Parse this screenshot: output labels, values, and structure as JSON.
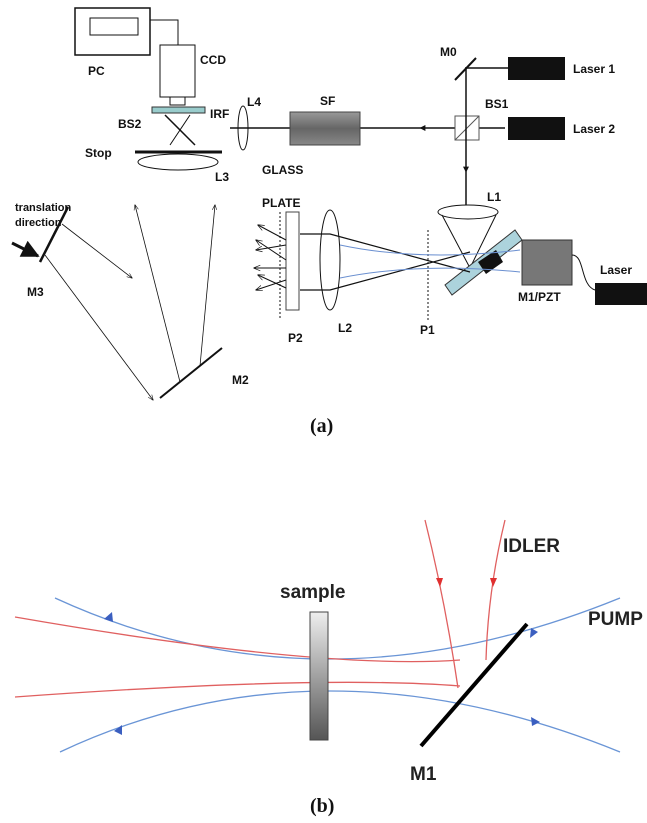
{
  "panel_a": {
    "labels": {
      "pc": "PC",
      "ccd": "CCD",
      "m0": "M0",
      "laser1": "Laser 1",
      "irf": "IRF",
      "l4": "L4",
      "sf": "SF",
      "bs1": "BS1",
      "laser2": "Laser 2",
      "bs2": "BS2",
      "stop": "Stop",
      "glass": "GLASS",
      "l3": "L3",
      "l1": "L1",
      "translation_direction": [
        "translation",
        "direction"
      ],
      "plate": "PLATE",
      "m3": "M3",
      "laser": "Laser",
      "m1_pzt": "M1/PZT",
      "l2": "L2",
      "p1": "P1",
      "p2": "P2",
      "m2": "M2"
    },
    "caption": "(a)"
  },
  "panel_b": {
    "labels": {
      "idler": "IDLER",
      "sample": "sample",
      "pump": "PUMP",
      "m1": "M1"
    },
    "caption": "(b)"
  }
}
